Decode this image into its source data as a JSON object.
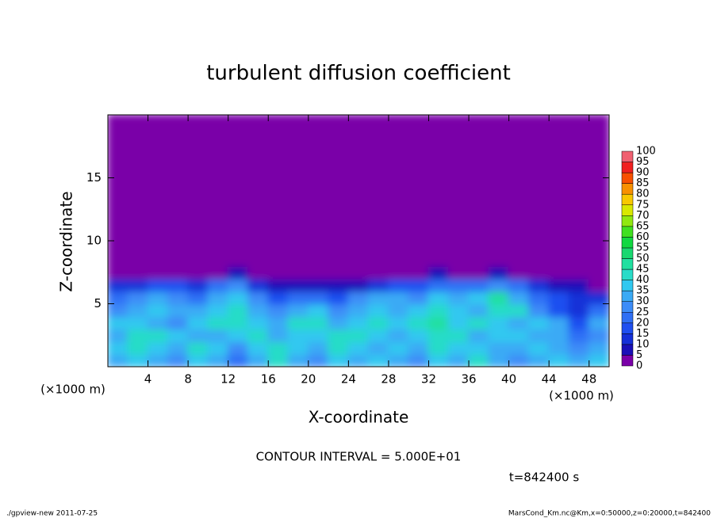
{
  "chart_data": {
    "type": "heatmap",
    "title": "turbulent diffusion coefficient",
    "x_label": "X-coordinate",
    "y_label": "Z-coordinate",
    "x_unit_label": "(×1000 m)",
    "y_unit_label": "(×1000 m)",
    "xlim": [
      0,
      50
    ],
    "xticks": [
      4,
      8,
      12,
      16,
      20,
      24,
      28,
      32,
      36,
      40,
      44,
      48
    ],
    "ylim": [
      0,
      20
    ],
    "yticks": [
      5,
      10,
      15
    ],
    "x": [
      1,
      3,
      5,
      7,
      9,
      11,
      13,
      15,
      17,
      19,
      21,
      23,
      25,
      27,
      29,
      31,
      33,
      35,
      37,
      39,
      41,
      43,
      45,
      47,
      49
    ],
    "y": [
      0.5,
      1.5,
      2.5,
      3.5,
      4.5,
      5.5,
      6.5,
      7.5,
      8.5,
      9.5,
      10.5,
      11.5,
      12.5,
      13.5,
      14.5,
      15.5,
      16.5,
      17.5,
      18.5,
      19.5
    ],
    "values": [
      [
        30,
        35,
        30,
        25,
        35,
        30,
        20,
        30,
        40,
        30,
        25,
        35,
        30,
        35,
        30,
        25,
        35,
        30,
        40,
        30,
        25,
        30,
        35,
        30,
        35
      ],
      [
        35,
        40,
        35,
        30,
        40,
        35,
        25,
        35,
        40,
        35,
        30,
        40,
        35,
        30,
        35,
        30,
        40,
        35,
        35,
        30,
        30,
        35,
        30,
        25,
        30
      ],
      [
        30,
        40,
        40,
        35,
        30,
        30,
        35,
        40,
        30,
        35,
        35,
        40,
        40,
        35,
        30,
        35,
        40,
        40,
        30,
        35,
        35,
        30,
        30,
        20,
        25
      ],
      [
        35,
        35,
        30,
        25,
        35,
        40,
        40,
        35,
        30,
        40,
        40,
        30,
        35,
        40,
        35,
        40,
        45,
        35,
        40,
        35,
        30,
        35,
        30,
        15,
        30
      ],
      [
        25,
        30,
        35,
        30,
        30,
        35,
        40,
        30,
        25,
        30,
        35,
        25,
        30,
        35,
        30,
        35,
        40,
        35,
        30,
        40,
        40,
        25,
        15,
        10,
        20
      ],
      [
        20,
        25,
        30,
        25,
        20,
        30,
        35,
        25,
        15,
        20,
        20,
        15,
        25,
        30,
        30,
        25,
        35,
        30,
        35,
        45,
        30,
        20,
        15,
        10,
        10
      ],
      [
        10,
        10,
        15,
        15,
        10,
        20,
        25,
        10,
        5,
        5,
        5,
        5,
        5,
        10,
        15,
        15,
        20,
        20,
        20,
        25,
        20,
        10,
        5,
        5,
        0
      ],
      [
        0,
        0,
        0,
        0,
        0,
        0,
        5,
        0,
        0,
        0,
        0,
        0,
        0,
        0,
        0,
        0,
        5,
        0,
        0,
        5,
        0,
        0,
        0,
        0,
        0
      ],
      [
        0,
        0,
        0,
        0,
        0,
        0,
        0,
        0,
        0,
        0,
        0,
        0,
        0,
        0,
        0,
        0,
        0,
        0,
        0,
        0,
        0,
        0,
        0,
        0,
        0
      ],
      [
        0,
        0,
        0,
        0,
        0,
        0,
        0,
        0,
        0,
        0,
        0,
        0,
        0,
        0,
        0,
        0,
        0,
        0,
        0,
        0,
        0,
        0,
        0,
        0,
        0
      ],
      [
        0,
        0,
        0,
        0,
        0,
        0,
        0,
        0,
        0,
        0,
        0,
        0,
        0,
        0,
        0,
        0,
        0,
        0,
        0,
        0,
        0,
        0,
        0,
        0,
        0
      ],
      [
        0,
        0,
        0,
        0,
        0,
        0,
        0,
        0,
        0,
        0,
        0,
        0,
        0,
        0,
        0,
        0,
        0,
        0,
        0,
        0,
        0,
        0,
        0,
        0,
        0
      ],
      [
        0,
        0,
        0,
        0,
        0,
        0,
        0,
        0,
        0,
        0,
        0,
        0,
        0,
        0,
        0,
        0,
        0,
        0,
        0,
        0,
        0,
        0,
        0,
        0,
        0
      ],
      [
        0,
        0,
        0,
        0,
        0,
        0,
        0,
        0,
        0,
        0,
        0,
        0,
        0,
        0,
        0,
        0,
        0,
        0,
        0,
        0,
        0,
        0,
        0,
        0,
        0
      ],
      [
        0,
        0,
        0,
        0,
        0,
        0,
        0,
        0,
        0,
        0,
        0,
        0,
        0,
        0,
        0,
        0,
        0,
        0,
        0,
        0,
        0,
        0,
        0,
        0,
        0
      ],
      [
        0,
        0,
        0,
        0,
        0,
        0,
        0,
        0,
        0,
        0,
        0,
        0,
        0,
        0,
        0,
        0,
        0,
        0,
        0,
        0,
        0,
        0,
        0,
        0,
        0
      ],
      [
        0,
        0,
        0,
        0,
        0,
        0,
        0,
        0,
        0,
        0,
        0,
        0,
        0,
        0,
        0,
        0,
        0,
        0,
        0,
        0,
        0,
        0,
        0,
        0,
        0
      ],
      [
        0,
        0,
        0,
        0,
        0,
        0,
        0,
        0,
        0,
        0,
        0,
        0,
        0,
        0,
        0,
        0,
        0,
        0,
        0,
        0,
        0,
        0,
        0,
        0,
        0
      ],
      [
        0,
        0,
        0,
        0,
        0,
        0,
        0,
        0,
        0,
        0,
        0,
        0,
        0,
        0,
        0,
        0,
        0,
        0,
        0,
        0,
        0,
        0,
        0,
        0,
        0
      ],
      [
        0,
        0,
        0,
        0,
        0,
        0,
        0,
        0,
        0,
        0,
        0,
        0,
        0,
        0,
        0,
        0,
        0,
        0,
        0,
        0,
        0,
        0,
        0,
        0,
        0
      ]
    ],
    "levels": [
      0,
      5,
      10,
      15,
      20,
      25,
      30,
      35,
      40,
      45,
      50,
      55,
      60,
      65,
      70,
      75,
      80,
      85,
      90,
      95,
      100
    ],
    "colors": [
      "#7a00a8",
      "#1a10b8",
      "#1530d8",
      "#1f4ff0",
      "#2f6ff5",
      "#3c8cf8",
      "#3aaaf5",
      "#30c8f0",
      "#28dcc8",
      "#20e0a0",
      "#18d870",
      "#10d840",
      "#40e020",
      "#90e810",
      "#d8e800",
      "#f8c800",
      "#f89000",
      "#f85000",
      "#f02020",
      "#f06070"
    ],
    "contour_interval": "CONTOUR INTERVAL = 5.000E+01",
    "time_label": "t=842400 s",
    "footer_left": "./gpview-new  2011-07-25",
    "footer_right": "MarsCond_Km.nc@Km,x=0:50000,z=0:20000,t=842400"
  }
}
